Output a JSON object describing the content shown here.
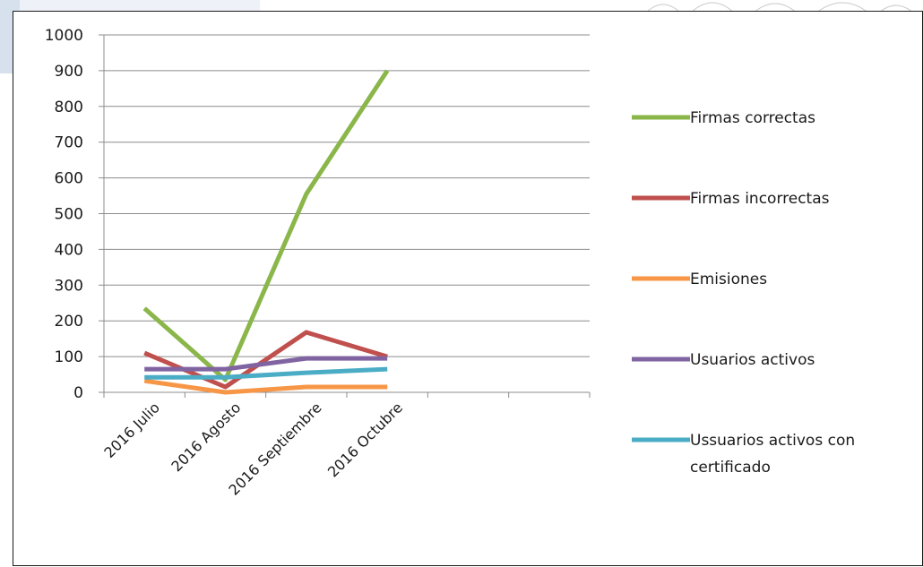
{
  "chart_data": {
    "type": "line",
    "title": "",
    "xlabel": "",
    "ylabel": "",
    "ylim": [
      0,
      1000
    ],
    "yticks": [
      0,
      100,
      200,
      300,
      400,
      500,
      600,
      700,
      800,
      900,
      1000
    ],
    "categories": [
      "2016 Julio",
      "2016 Agosto",
      "2016 Septiembre",
      "2016 Octubre"
    ],
    "extra_empty_category_slots": 2,
    "grid": "horizontal",
    "legend_placement": "right",
    "series": [
      {
        "name": "Firmas correctas",
        "color": "#8ab64a",
        "values": [
          235,
          35,
          555,
          900
        ]
      },
      {
        "name": "Firmas incorrectas",
        "color": "#c0504d",
        "values": [
          110,
          15,
          168,
          100
        ]
      },
      {
        "name": "Emisiones",
        "color": "#f79646",
        "values": [
          32,
          0,
          15,
          15
        ]
      },
      {
        "name": "Usuarios activos",
        "color": "#8064a2",
        "values": [
          65,
          65,
          95,
          95
        ]
      },
      {
        "name": "Ussuarios activos con certificado",
        "color": "#4bacc6",
        "values": [
          42,
          42,
          55,
          65
        ]
      }
    ],
    "legend_lines": [
      [
        "Firmas correctas"
      ],
      [
        "Firmas incorrectas"
      ],
      [
        "Emisiones"
      ],
      [
        "Usuarios activos"
      ],
      [
        "Ussuarios activos con",
        "certificado"
      ]
    ]
  }
}
